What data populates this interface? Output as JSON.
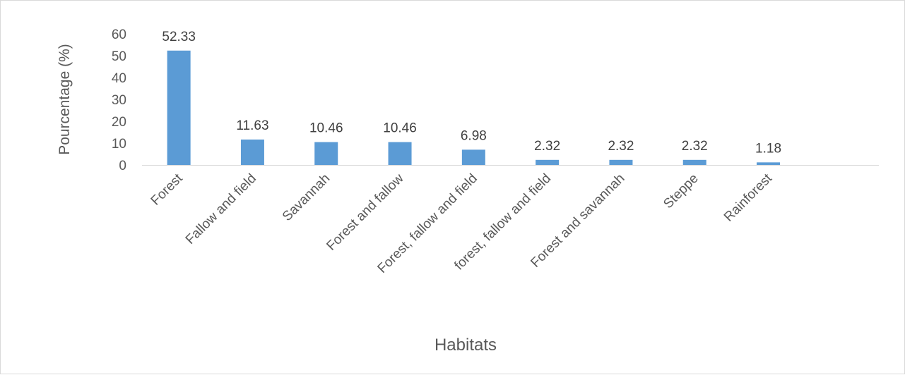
{
  "chart_data": {
    "type": "bar",
    "title": "",
    "xlabel": "Habitats",
    "ylabel": "Pourcentage (%)",
    "ylim": [
      0,
      60
    ],
    "yticks": [
      0,
      10,
      20,
      30,
      40,
      50,
      60
    ],
    "grid": false,
    "legend": "none",
    "categories": [
      "Forest",
      "Fallow and field",
      "Savannah",
      "Forest and fallow",
      "Forest, fallow and field",
      "forest, fallow and field",
      "Forest and savannah",
      "Steppe",
      "Rainforest"
    ],
    "values": [
      52.33,
      11.63,
      10.46,
      10.46,
      6.98,
      2.32,
      2.32,
      2.32,
      1.18
    ],
    "data_labels": [
      "52.33",
      "11.63",
      "10.46",
      "10.46",
      "6.98",
      "2.32",
      "2.32",
      "2.32",
      "1.18"
    ],
    "bar_color": "#5b9bd5"
  }
}
